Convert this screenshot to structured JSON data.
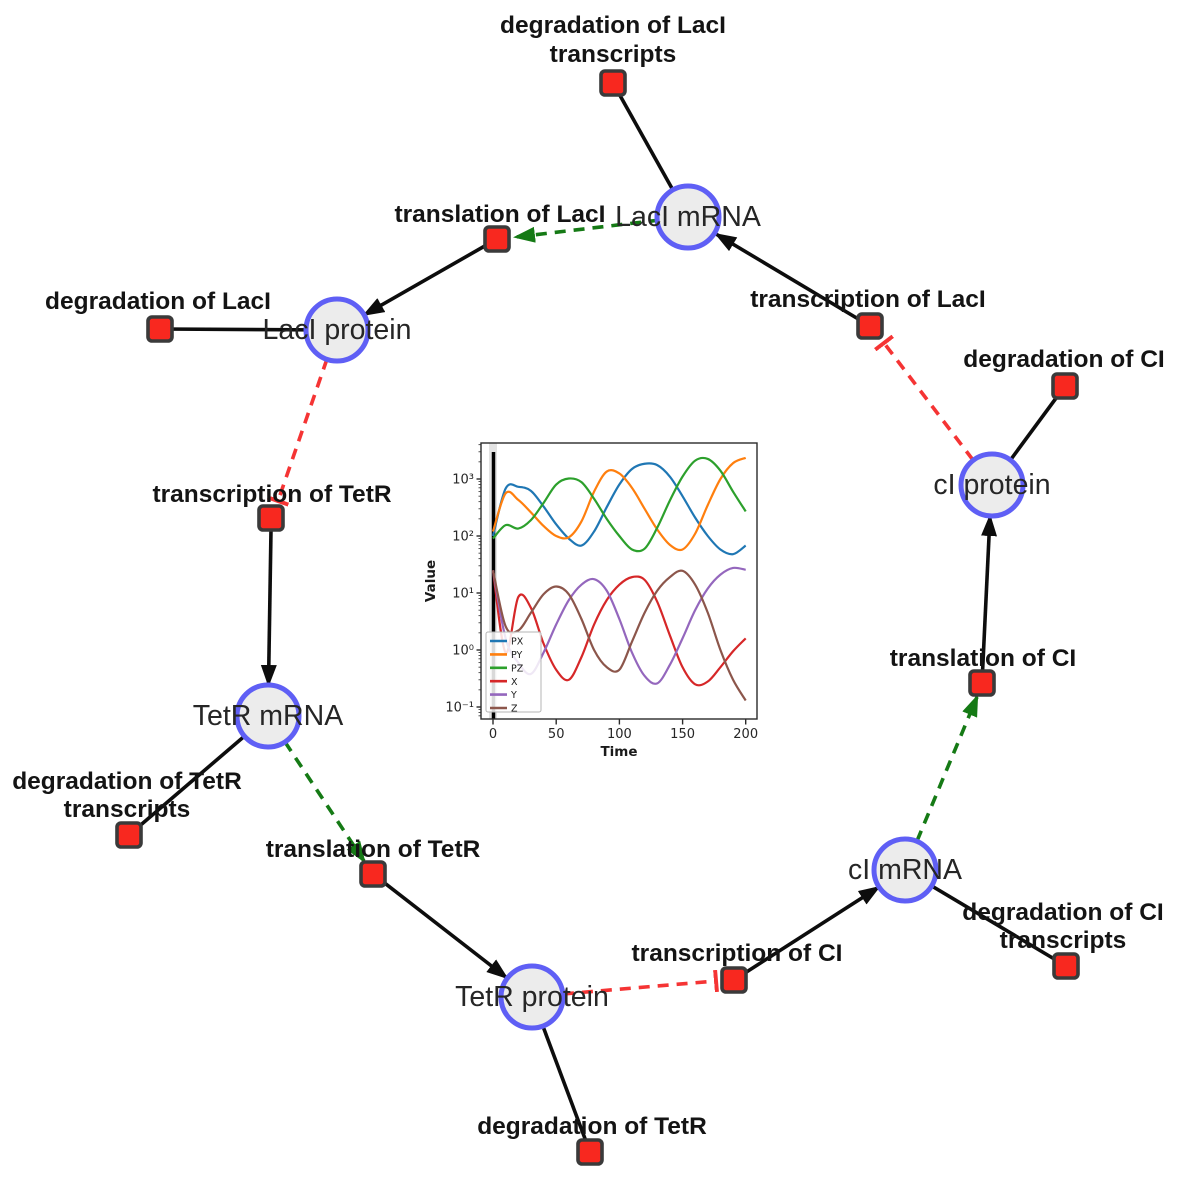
{
  "colors": {
    "species_fill": "#ececec",
    "species_border": "#5f5ff5",
    "reaction_fill": "#f8281f",
    "reaction_border": "#3a3a3a",
    "edge_black": "#0d0d0d",
    "edge_modifier_green": "#157a15",
    "edge_inhibition_red": "#f53434"
  },
  "species": [
    {
      "label": "LacI mRNA"
    },
    {
      "label": "LacI protein"
    },
    {
      "label": "TetR mRNA"
    },
    {
      "label": "TetR protein"
    },
    {
      "label": "cI mRNA"
    },
    {
      "label": "cI protein"
    }
  ],
  "reactions": [
    {
      "line1": "degradation of LacI",
      "line2": "transcripts"
    },
    {
      "line1": "translation of LacI",
      "line2": ""
    },
    {
      "line1": "degradation of LacI",
      "line2": ""
    },
    {
      "line1": "transcription of LacI",
      "line2": ""
    },
    {
      "line1": "degradation of CI",
      "line2": ""
    },
    {
      "line1": "transcription of TetR",
      "line2": ""
    },
    {
      "line1": "degradation of TetR",
      "line2": "transcripts"
    },
    {
      "line1": "translation of TetR",
      "line2": ""
    },
    {
      "line1": "degradation of TetR",
      "line2": ""
    },
    {
      "line1": "transcription of CI",
      "line2": ""
    },
    {
      "line1": "degradation of CI",
      "line2": "transcripts"
    },
    {
      "line1": "translation of CI",
      "line2": ""
    }
  ],
  "plot": {
    "xlabel": "Time",
    "ylabel": "Value",
    "x_ticks": [
      "0",
      "50",
      "100",
      "150",
      "200"
    ],
    "y_ticks": [
      "10³",
      "10²",
      "10¹",
      "10⁰",
      "10⁻¹"
    ]
  },
  "chart_data": {
    "type": "line",
    "title": "",
    "xlabel": "Time",
    "ylabel": "Value",
    "x_range": [
      0,
      200
    ],
    "y_scale": "log",
    "y_range": [
      0.1,
      1000
    ],
    "grid": false,
    "legend_position": "lower left",
    "x": [
      0,
      10,
      20,
      30,
      40,
      50,
      60,
      70,
      80,
      90,
      100,
      110,
      120,
      130,
      140,
      150,
      160,
      170,
      180,
      190,
      200
    ],
    "series": [
      {
        "name": "PX",
        "color": "#1f77b4",
        "values": [
          100,
          680,
          730,
          620,
          330,
          160,
          90,
          68,
          120,
          320,
          800,
          1500,
          1850,
          1750,
          1100,
          500,
          210,
          100,
          58,
          48,
          68
        ]
      },
      {
        "name": "PY",
        "color": "#ff7f0e",
        "values": [
          120,
          560,
          430,
          260,
          150,
          100,
          95,
          180,
          600,
          1350,
          1250,
          700,
          300,
          130,
          70,
          58,
          110,
          350,
          1000,
          1900,
          2350
        ]
      },
      {
        "name": "PZ",
        "color": "#2ca02c",
        "values": [
          90,
          155,
          135,
          190,
          380,
          800,
          1020,
          880,
          450,
          200,
          100,
          58,
          60,
          140,
          420,
          1100,
          2100,
          2250,
          1400,
          600,
          270
        ]
      },
      {
        "name": "X",
        "color": "#d62728",
        "values": [
          25,
          0.9,
          8.5,
          5.5,
          1.3,
          0.45,
          0.3,
          0.75,
          2.8,
          7.5,
          14,
          19,
          17,
          7,
          1.8,
          0.5,
          0.25,
          0.28,
          0.5,
          0.95,
          1.6
        ]
      },
      {
        "name": "Y",
        "color": "#9467bd",
        "values": [
          25,
          1.6,
          0.6,
          0.38,
          0.9,
          2.8,
          7.5,
          14,
          17.5,
          11,
          3.5,
          0.9,
          0.35,
          0.26,
          0.55,
          1.6,
          5,
          12,
          21,
          27.5,
          25.5
        ]
      },
      {
        "name": "Z",
        "color": "#8c564b",
        "values": [
          25,
          2.6,
          2.2,
          4.5,
          9.5,
          13,
          9.5,
          3.5,
          1.0,
          0.5,
          0.45,
          1.4,
          4.5,
          11,
          19,
          24.5,
          14,
          4.5,
          1.0,
          0.3,
          0.13
        ]
      }
    ]
  }
}
